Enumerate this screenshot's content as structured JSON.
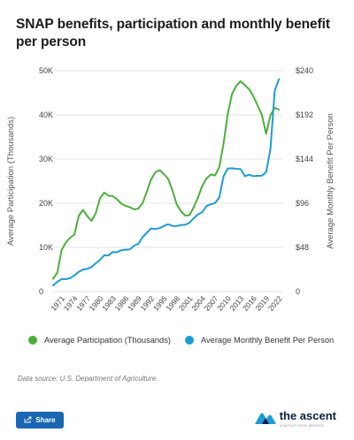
{
  "title": "SNAP benefits, participation and monthly benefit per person",
  "chart_data": {
    "type": "line",
    "yleft_label": "Average Participation (Thousands)",
    "yright_label": "Average Monthly Benefit Per Person",
    "yleft_ticks": [
      "0",
      "10K",
      "20K",
      "30K",
      "40K",
      "50K"
    ],
    "yleft_lim": [
      0,
      50000
    ],
    "yright_ticks": [
      "0",
      "$48",
      "$96",
      "$144",
      "$192",
      "$240"
    ],
    "yright_lim": [
      0,
      240
    ],
    "x_ticks": [
      "1971",
      "1974",
      "1977",
      "1980",
      "1983",
      "1986",
      "1989",
      "1992",
      "1995",
      "1998",
      "2001",
      "2004",
      "2007",
      "2010",
      "2013",
      "2016",
      "2019",
      "2022"
    ],
    "x_lim": [
      1969,
      2023
    ],
    "grid": true,
    "series": [
      {
        "name": "Average Participation (Thousands)",
        "color": "#4caf3a",
        "axis": "left",
        "x": [
          1969,
          1970,
          1971,
          1972,
          1973,
          1974,
          1975,
          1976,
          1977,
          1978,
          1979,
          1980,
          1981,
          1982,
          1983,
          1984,
          1985,
          1986,
          1987,
          1988,
          1989,
          1990,
          1991,
          1992,
          1993,
          1994,
          1995,
          1996,
          1997,
          1998,
          1999,
          2000,
          2001,
          2002,
          2003,
          2004,
          2005,
          2006,
          2007,
          2008,
          2009,
          2010,
          2011,
          2012,
          2013,
          2014,
          2015,
          2016,
          2017,
          2018,
          2019,
          2020,
          2021,
          2022
        ],
        "y": [
          2900,
          4300,
          9400,
          11100,
          12200,
          12900,
          17100,
          18500,
          17100,
          16000,
          17700,
          21100,
          22400,
          21700,
          21600,
          20900,
          19900,
          19400,
          19100,
          18600,
          18800,
          20000,
          22600,
          25400,
          27000,
          27500,
          26600,
          25500,
          22900,
          19800,
          18200,
          17200,
          17300,
          19100,
          21300,
          23900,
          25600,
          26500,
          26300,
          28200,
          33500,
          40300,
          44700,
          46600,
          47600,
          46700,
          45800,
          44200,
          42100,
          40000,
          35700,
          39900,
          41600,
          41200
        ]
      },
      {
        "name": "Average Monthly Benefit Per Person",
        "color": "#1e9bd7",
        "axis": "right",
        "x": [
          1969,
          1970,
          1971,
          1972,
          1973,
          1974,
          1975,
          1976,
          1977,
          1978,
          1979,
          1980,
          1981,
          1982,
          1983,
          1984,
          1985,
          1986,
          1987,
          1988,
          1989,
          1990,
          1991,
          1992,
          1993,
          1994,
          1995,
          1996,
          1997,
          1998,
          1999,
          2000,
          2001,
          2002,
          2003,
          2004,
          2005,
          2006,
          2007,
          2008,
          2009,
          2010,
          2011,
          2012,
          2013,
          2014,
          2015,
          2016,
          2017,
          2018,
          2019,
          2020,
          2021,
          2022
        ],
        "y": [
          6.6,
          10.6,
          13.6,
          13.4,
          14.6,
          17.6,
          21.4,
          23.9,
          24.7,
          26.8,
          30.6,
          34.5,
          39.5,
          39.2,
          43.0,
          42.7,
          45.0,
          45.5,
          45.8,
          49.8,
          51.7,
          59.0,
          63.8,
          68.6,
          68.0,
          69.0,
          71.3,
          73.2,
          71.3,
          71.1,
          72.3,
          72.6,
          74.8,
          79.7,
          83.9,
          86.2,
          92.9,
          94.8,
          96.2,
          102.2,
          125.3,
          133.8,
          133.9,
          133.4,
          133.1,
          125.4,
          127.0,
          125.4,
          125.8,
          125.9,
          129.8,
          155.0,
          218.2,
          230.9
        ]
      }
    ]
  },
  "legend": {
    "participation_label": "Average Participation (Thousands)",
    "benefit_label": "Average Monthly Benefit Per Person",
    "participation_color": "#4caf3a",
    "benefit_color": "#1e9bd7"
  },
  "source": "Data source: U.S. Department of Agriculture.",
  "share_button": {
    "label": "Share",
    "icon": "share-icon"
  },
  "logo": {
    "text": "the ascent",
    "subtitle": "A MOTLEY FOOL SERVICE",
    "icon": "ascent-logo-icon"
  }
}
